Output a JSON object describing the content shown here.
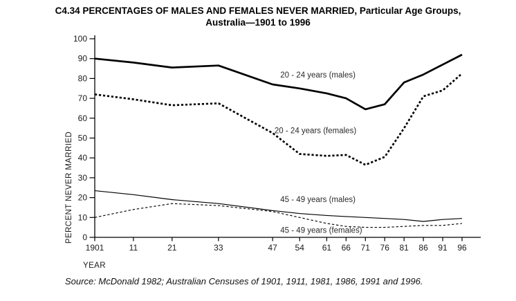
{
  "figure": {
    "title_line1": "C4.34 PERCENTAGES OF MALES AND FEMALES NEVER MARRIED, Particular Age Groups,",
    "title_line2": "Australia—1901 to 1996",
    "source": "Source: McDonald 1982; Australian Censuses of 1901, 1911, 1981, 1986, 1991 and 1996."
  },
  "chart_data": {
    "type": "line",
    "title": "C4.34 PERCENTAGES OF MALES AND FEMALES NEVER MARRIED, Particular Age Groups, Australia—1901 to 1996",
    "xlabel": "YEAR",
    "ylabel": "PERCENT NEVER MARRIED",
    "grid": false,
    "legend_position": "inline annotations beside lines",
    "ylim": [
      0,
      100
    ],
    "y_ticks": [
      0,
      10,
      20,
      30,
      40,
      50,
      60,
      70,
      80,
      90,
      100
    ],
    "x": [
      1901,
      1911,
      1921,
      1933,
      1947,
      1954,
      1961,
      1966,
      1971,
      1976,
      1981,
      1986,
      1991,
      1996
    ],
    "x_tick_labels": [
      "1901",
      "11",
      "21",
      "33",
      "47",
      "54",
      "61",
      "66",
      "71",
      "76",
      "81",
      "86",
      "91",
      "96"
    ],
    "series": [
      {
        "name": "20 - 24 years (males)",
        "line": "solid",
        "weight": "thick",
        "values": [
          90,
          88,
          85.5,
          86.5,
          77,
          75,
          72.5,
          70,
          64.5,
          67,
          78,
          82,
          87,
          92
        ],
        "label_anchor": {
          "year": 1949,
          "value": 80.5
        }
      },
      {
        "name": "20 - 24 years (females)",
        "line": "dashed",
        "weight": "thick",
        "values": [
          72,
          69.5,
          66.5,
          67.5,
          52.5,
          42,
          41,
          41.5,
          36.5,
          40.5,
          55,
          71,
          74,
          82.5
        ],
        "label_anchor": {
          "year": 1947.5,
          "value": 52.5
        }
      },
      {
        "name": "45 - 49 years (males)",
        "line": "solid",
        "weight": "thin",
        "values": [
          23.5,
          21.5,
          19,
          17,
          13.5,
          12,
          11,
          10.5,
          10,
          9.5,
          9,
          8,
          9,
          9.5
        ],
        "label_anchor": {
          "year": 1949,
          "value": 17.8
        }
      },
      {
        "name": "45 - 49 years (females)",
        "line": "dashed",
        "weight": "thin",
        "values": [
          10,
          14,
          17,
          16,
          13,
          10,
          7,
          5.5,
          5,
          5,
          5.5,
          6,
          6,
          7
        ],
        "label_anchor": {
          "year": 1949,
          "value": 2.3
        }
      }
    ]
  }
}
